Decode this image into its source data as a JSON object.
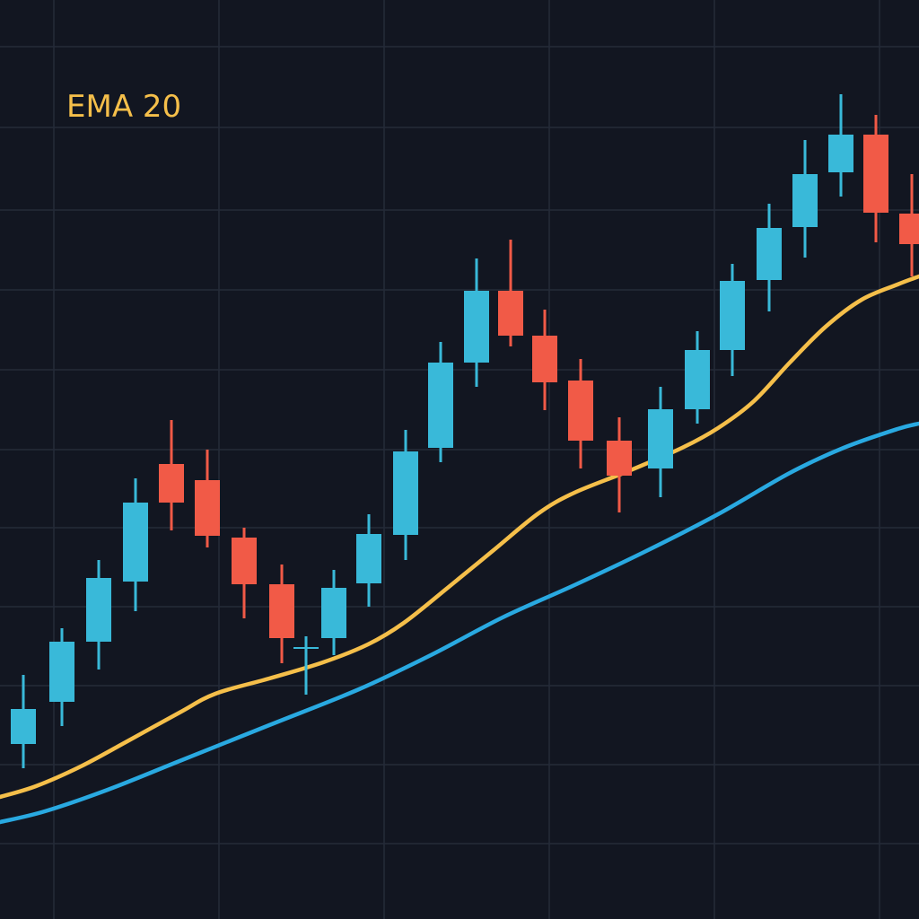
{
  "chart_data": {
    "type": "candlestick",
    "title": "",
    "grid": true,
    "ylim": [
      0,
      1024
    ],
    "series_label": "EMA 20",
    "candles": [
      {
        "x": 26,
        "open": 195,
        "close": 234,
        "high": 272,
        "low": 168
      },
      {
        "x": 69,
        "open": 242,
        "close": 309,
        "high": 324,
        "low": 215
      },
      {
        "x": 110,
        "open": 309,
        "close": 380,
        "high": 400,
        "low": 278
      },
      {
        "x": 151,
        "open": 376,
        "close": 464,
        "high": 491,
        "low": 343
      },
      {
        "x": 191,
        "open": 507,
        "close": 464,
        "high": 556,
        "low": 433
      },
      {
        "x": 231,
        "open": 489,
        "close": 427,
        "high": 523,
        "low": 414
      },
      {
        "x": 272,
        "open": 425,
        "close": 373,
        "high": 436,
        "low": 335
      },
      {
        "x": 314,
        "open": 373,
        "close": 313,
        "high": 395,
        "low": 285
      },
      {
        "x": 341,
        "open": 303,
        "close": 303,
        "high": 315,
        "low": 250
      },
      {
        "x": 372,
        "open": 313,
        "close": 369,
        "high": 389,
        "low": 294
      },
      {
        "x": 411,
        "open": 374,
        "close": 429,
        "high": 451,
        "low": 348
      },
      {
        "x": 452,
        "open": 428,
        "close": 521,
        "high": 545,
        "low": 400
      },
      {
        "x": 491,
        "open": 525,
        "close": 620,
        "high": 643,
        "low": 509
      },
      {
        "x": 531,
        "open": 620,
        "close": 700,
        "high": 736,
        "low": 593
      },
      {
        "x": 569,
        "open": 700,
        "close": 650,
        "high": 757,
        "low": 638
      },
      {
        "x": 607,
        "open": 650,
        "close": 598,
        "high": 679,
        "low": 567
      },
      {
        "x": 647,
        "open": 600,
        "close": 533,
        "high": 624,
        "low": 502
      },
      {
        "x": 690,
        "open": 533,
        "close": 494,
        "high": 559,
        "low": 453
      },
      {
        "x": 736,
        "open": 502,
        "close": 568,
        "high": 593,
        "low": 470
      },
      {
        "x": 777,
        "open": 568,
        "close": 634,
        "high": 655,
        "low": 552
      },
      {
        "x": 816,
        "open": 634,
        "close": 711,
        "high": 730,
        "low": 605
      },
      {
        "x": 857,
        "open": 712,
        "close": 770,
        "high": 797,
        "low": 677
      },
      {
        "x": 897,
        "open": 771,
        "close": 830,
        "high": 868,
        "low": 737
      },
      {
        "x": 937,
        "open": 832,
        "close": 874,
        "high": 919,
        "low": 805
      },
      {
        "x": 976,
        "open": 874,
        "close": 787,
        "high": 896,
        "low": 754
      },
      {
        "x": 1016,
        "open": 786,
        "close": 752,
        "high": 830,
        "low": 716
      }
    ],
    "ema_fast": [
      [
        0,
        136
      ],
      [
        40,
        148
      ],
      [
        90,
        170
      ],
      [
        140,
        197
      ],
      [
        200,
        230
      ],
      [
        240,
        251
      ],
      [
        300,
        268
      ],
      [
        360,
        286
      ],
      [
        410,
        306
      ],
      [
        450,
        330
      ],
      [
        500,
        370
      ],
      [
        550,
        411
      ],
      [
        600,
        452
      ],
      [
        640,
        475
      ],
      [
        700,
        499
      ],
      [
        760,
        525
      ],
      [
        800,
        547
      ],
      [
        840,
        577
      ],
      [
        880,
        620
      ],
      [
        920,
        660
      ],
      [
        960,
        690
      ],
      [
        1000,
        707
      ],
      [
        1024,
        716
      ]
    ],
    "ema_slow": [
      [
        0,
        108
      ],
      [
        50,
        120
      ],
      [
        120,
        144
      ],
      [
        200,
        176
      ],
      [
        300,
        216
      ],
      [
        400,
        256
      ],
      [
        480,
        294
      ],
      [
        560,
        336
      ],
      [
        640,
        372
      ],
      [
        720,
        410
      ],
      [
        800,
        451
      ],
      [
        880,
        497
      ],
      [
        940,
        525
      ],
      [
        1000,
        546
      ],
      [
        1024,
        552
      ]
    ],
    "colors": {
      "up": "#39b9d9",
      "down": "#f15a47",
      "ema_fast": "#f5bf4a",
      "ema_slow": "#29a9e1",
      "grid": "#252b39",
      "label": "#f5bf4a"
    }
  }
}
